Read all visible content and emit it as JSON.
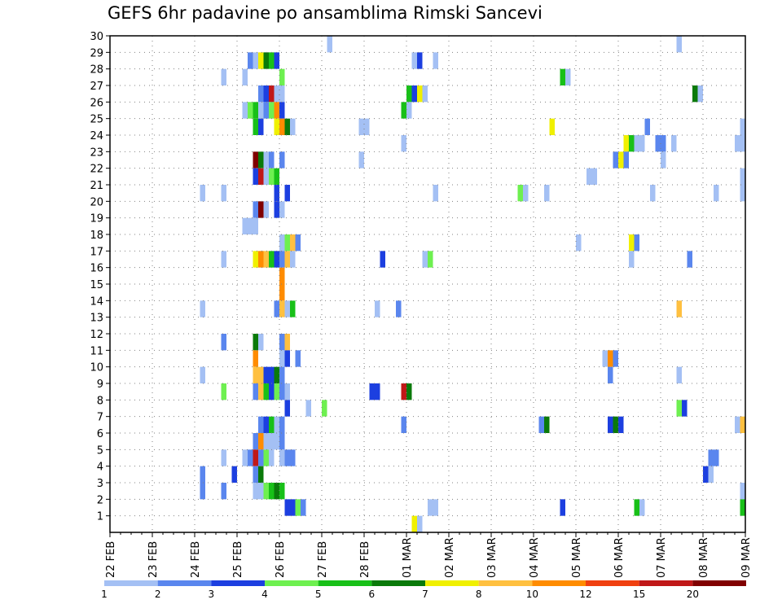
{
  "chart_data": {
    "type": "heatmap",
    "title": "GEFS 6hr padavine po ansamblima Rimski Sancevi",
    "xlabel": "",
    "ylabel": "",
    "x_tick_labels": [
      "22 FEB",
      "23 FEB",
      "24 FEB",
      "25 FEB",
      "26 FEB",
      "27 FEB",
      "28 FEB",
      "01 MAR",
      "02 MAR",
      "03 MAR",
      "04 MAR",
      "05 MAR",
      "06 MAR",
      "07 MAR",
      "08 MAR",
      "09 MAR"
    ],
    "x_range_days": [
      0,
      15
    ],
    "time_step_hours": 6,
    "y_tick_labels": [
      "1",
      "2",
      "3",
      "4",
      "5",
      "6",
      "7",
      "8",
      "9",
      "10",
      "11",
      "12",
      "13",
      "14",
      "15",
      "16",
      "17",
      "18",
      "19",
      "20",
      "21",
      "22",
      "23",
      "24",
      "25",
      "26",
      "27",
      "28",
      "29",
      "30"
    ],
    "y_range": [
      0,
      30
    ],
    "grid": true,
    "grid_style": "dotted",
    "legend_position": "bottom",
    "color_scale": {
      "labels": [
        "1",
        "2",
        "3",
        "4",
        "5",
        "6",
        "7",
        "8",
        "10",
        "12",
        "15",
        "20"
      ],
      "colors": [
        "#a4c0f4",
        "#5a86ee",
        "#1c3fe0",
        "#6ef050",
        "#18c018",
        "#0a7a0a",
        "#f0f000",
        "#ffc040",
        "#ff8c00",
        "#f04010",
        "#c01818",
        "#800000"
      ]
    },
    "cells_note": "each cell: [member, time_step_index (6h steps from 22 FEB 00Z), color_class_index]",
    "cells": [
      [
        30,
        41,
        0
      ],
      [
        30,
        107,
        0
      ],
      [
        29,
        26,
        1
      ],
      [
        29,
        27,
        0
      ],
      [
        29,
        28,
        6
      ],
      [
        29,
        29,
        5
      ],
      [
        29,
        30,
        4
      ],
      [
        29,
        31,
        2
      ],
      [
        29,
        57,
        0
      ],
      [
        29,
        58,
        2
      ],
      [
        29,
        61,
        0
      ],
      [
        28,
        21,
        0
      ],
      [
        28,
        25,
        0
      ],
      [
        28,
        32,
        3
      ],
      [
        28,
        85,
        4
      ],
      [
        28,
        86,
        0
      ],
      [
        27,
        28,
        1
      ],
      [
        27,
        29,
        2
      ],
      [
        27,
        30,
        10
      ],
      [
        27,
        31,
        0
      ],
      [
        27,
        32,
        0
      ],
      [
        27,
        56,
        4
      ],
      [
        27,
        57,
        2
      ],
      [
        27,
        58,
        6
      ],
      [
        27,
        59,
        0
      ],
      [
        27,
        110,
        5
      ],
      [
        27,
        111,
        0
      ],
      [
        26,
        25,
        0
      ],
      [
        26,
        26,
        3
      ],
      [
        26,
        27,
        4
      ],
      [
        26,
        28,
        0
      ],
      [
        26,
        29,
        1
      ],
      [
        26,
        30,
        3
      ],
      [
        26,
        31,
        8
      ],
      [
        26,
        32,
        2
      ],
      [
        26,
        55,
        4
      ],
      [
        26,
        56,
        0
      ],
      [
        25,
        27,
        4
      ],
      [
        25,
        28,
        2
      ],
      [
        25,
        31,
        6
      ],
      [
        25,
        32,
        8
      ],
      [
        25,
        33,
        5
      ],
      [
        25,
        34,
        0
      ],
      [
        25,
        47,
        0
      ],
      [
        25,
        48,
        0
      ],
      [
        25,
        83,
        6
      ],
      [
        25,
        101,
        1
      ],
      [
        25,
        119,
        0
      ],
      [
        24,
        55,
        0
      ],
      [
        24,
        97,
        6
      ],
      [
        24,
        98,
        4
      ],
      [
        24,
        99,
        0
      ],
      [
        24,
        100,
        0
      ],
      [
        24,
        103,
        1
      ],
      [
        24,
        104,
        1
      ],
      [
        24,
        106,
        0
      ],
      [
        24,
        118,
        0
      ],
      [
        24,
        119,
        0
      ],
      [
        23,
        27,
        11
      ],
      [
        23,
        28,
        5
      ],
      [
        23,
        29,
        0
      ],
      [
        23,
        30,
        1
      ],
      [
        23,
        32,
        1
      ],
      [
        23,
        47,
        0
      ],
      [
        23,
        95,
        1
      ],
      [
        23,
        96,
        6
      ],
      [
        23,
        97,
        1
      ],
      [
        23,
        104,
        0
      ],
      [
        22,
        27,
        2
      ],
      [
        22,
        28,
        10
      ],
      [
        22,
        29,
        0
      ],
      [
        22,
        30,
        3
      ],
      [
        22,
        31,
        4
      ],
      [
        22,
        90,
        0
      ],
      [
        22,
        91,
        0
      ],
      [
        22,
        119,
        0
      ],
      [
        21,
        17,
        0
      ],
      [
        21,
        21,
        0
      ],
      [
        21,
        33,
        2
      ],
      [
        21,
        31,
        2
      ],
      [
        21,
        61,
        0
      ],
      [
        21,
        77,
        3
      ],
      [
        21,
        78,
        0
      ],
      [
        21,
        82,
        0
      ],
      [
        21,
        102,
        0
      ],
      [
        21,
        114,
        0
      ],
      [
        21,
        119,
        0
      ],
      [
        20,
        27,
        1
      ],
      [
        20,
        28,
        11
      ],
      [
        20,
        29,
        0
      ],
      [
        20,
        31,
        2
      ],
      [
        20,
        32,
        0
      ],
      [
        19,
        25,
        0
      ],
      [
        19,
        26,
        0
      ],
      [
        19,
        27,
        0
      ],
      [
        18,
        32,
        0
      ],
      [
        18,
        33,
        3
      ],
      [
        18,
        34,
        7
      ],
      [
        18,
        35,
        1
      ],
      [
        18,
        88,
        0
      ],
      [
        18,
        98,
        6
      ],
      [
        18,
        99,
        1
      ],
      [
        17,
        21,
        0
      ],
      [
        17,
        27,
        6
      ],
      [
        17,
        28,
        8
      ],
      [
        17,
        29,
        7
      ],
      [
        17,
        30,
        4
      ],
      [
        17,
        31,
        2
      ],
      [
        17,
        32,
        1
      ],
      [
        17,
        33,
        7
      ],
      [
        17,
        34,
        0
      ],
      [
        17,
        51,
        2
      ],
      [
        17,
        59,
        0
      ],
      [
        17,
        60,
        3
      ],
      [
        17,
        98,
        0
      ],
      [
        17,
        109,
        1
      ],
      [
        16,
        32,
        8
      ],
      [
        15,
        32,
        8
      ],
      [
        14,
        17,
        0
      ],
      [
        14,
        31,
        1
      ],
      [
        14,
        32,
        7
      ],
      [
        14,
        33,
        0
      ],
      [
        14,
        34,
        4
      ],
      [
        14,
        50,
        0
      ],
      [
        14,
        54,
        1
      ],
      [
        14,
        107,
        7
      ],
      [
        12,
        21,
        1
      ],
      [
        12,
        27,
        5
      ],
      [
        12,
        28,
        0
      ],
      [
        12,
        32,
        1
      ],
      [
        12,
        33,
        7
      ],
      [
        11,
        27,
        8
      ],
      [
        11,
        32,
        0
      ],
      [
        11,
        33,
        2
      ],
      [
        11,
        35,
        1
      ],
      [
        11,
        93,
        0
      ],
      [
        11,
        94,
        8
      ],
      [
        11,
        95,
        1
      ],
      [
        10,
        17,
        0
      ],
      [
        10,
        27,
        7
      ],
      [
        10,
        28,
        7
      ],
      [
        10,
        29,
        2
      ],
      [
        10,
        30,
        2
      ],
      [
        10,
        31,
        5
      ],
      [
        10,
        32,
        1
      ],
      [
        10,
        94,
        1
      ],
      [
        10,
        107,
        0
      ],
      [
        9,
        21,
        3
      ],
      [
        9,
        27,
        1
      ],
      [
        9,
        28,
        7
      ],
      [
        9,
        29,
        4
      ],
      [
        9,
        30,
        2
      ],
      [
        9,
        31,
        3
      ],
      [
        9,
        32,
        1
      ],
      [
        9,
        33,
        0
      ],
      [
        9,
        49,
        2
      ],
      [
        9,
        50,
        2
      ],
      [
        9,
        55,
        10
      ],
      [
        9,
        56,
        5
      ],
      [
        8,
        33,
        2
      ],
      [
        8,
        37,
        0
      ],
      [
        8,
        40,
        3
      ],
      [
        8,
        107,
        3
      ],
      [
        8,
        108,
        2
      ],
      [
        7,
        28,
        1
      ],
      [
        7,
        29,
        2
      ],
      [
        7,
        30,
        4
      ],
      [
        7,
        31,
        0
      ],
      [
        7,
        32,
        1
      ],
      [
        7,
        55,
        1
      ],
      [
        7,
        81,
        1
      ],
      [
        7,
        82,
        5
      ],
      [
        7,
        94,
        2
      ],
      [
        7,
        95,
        5
      ],
      [
        7,
        96,
        2
      ],
      [
        7,
        118,
        0
      ],
      [
        7,
        119,
        7
      ],
      [
        6,
        27,
        1
      ],
      [
        6,
        28,
        8
      ],
      [
        6,
        29,
        0
      ],
      [
        6,
        30,
        0
      ],
      [
        6,
        31,
        0
      ],
      [
        6,
        32,
        1
      ],
      [
        5,
        21,
        0
      ],
      [
        5,
        25,
        0
      ],
      [
        5,
        26,
        1
      ],
      [
        5,
        27,
        10
      ],
      [
        5,
        28,
        1
      ],
      [
        5,
        29,
        3
      ],
      [
        5,
        30,
        0
      ],
      [
        5,
        32,
        0
      ],
      [
        5,
        33,
        1
      ],
      [
        5,
        34,
        1
      ],
      [
        5,
        113,
        1
      ],
      [
        5,
        114,
        1
      ],
      [
        4,
        17,
        1
      ],
      [
        4,
        23,
        2
      ],
      [
        4,
        27,
        1
      ],
      [
        4,
        28,
        5
      ],
      [
        4,
        112,
        2
      ],
      [
        4,
        113,
        0
      ],
      [
        3,
        17,
        1
      ],
      [
        3,
        21,
        1
      ],
      [
        3,
        27,
        0
      ],
      [
        3,
        28,
        0
      ],
      [
        3,
        29,
        3
      ],
      [
        3,
        30,
        4
      ],
      [
        3,
        31,
        5
      ],
      [
        3,
        32,
        4
      ],
      [
        3,
        119,
        0
      ],
      [
        2,
        33,
        2
      ],
      [
        2,
        34,
        2
      ],
      [
        2,
        35,
        3
      ],
      [
        2,
        36,
        1
      ],
      [
        2,
        60,
        0
      ],
      [
        2,
        61,
        0
      ],
      [
        2,
        85,
        2
      ],
      [
        2,
        99,
        4
      ],
      [
        2,
        100,
        0
      ],
      [
        2,
        119,
        4
      ],
      [
        1,
        57,
        6
      ],
      [
        1,
        58,
        0
      ]
    ]
  }
}
